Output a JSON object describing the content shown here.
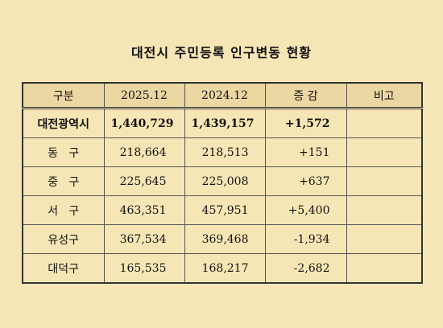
{
  "title": "대전시 주민등록 인구변동 현황",
  "headers": {
    "region": "구분",
    "y2025": "2025.12",
    "y2024": "2024.12",
    "diff": "증 감",
    "note": "비고"
  },
  "rows": [
    {
      "region": "대전광역시",
      "y2025": "1,440,729",
      "y2024": "1,439,157",
      "diff": "+1,572",
      "note": ""
    },
    {
      "region": "동   구",
      "y2025": "218,664",
      "y2024": "218,513",
      "diff": "+151",
      "note": ""
    },
    {
      "region": "중   구",
      "y2025": "225,645",
      "y2024": "225,008",
      "diff": "+637",
      "note": ""
    },
    {
      "region": "서   구",
      "y2025": "463,351",
      "y2024": "457,951",
      "diff": "+5,400",
      "note": ""
    },
    {
      "region": "유성구",
      "y2025": "367,534",
      "y2024": "369,468",
      "diff": "-1,934",
      "note": ""
    },
    {
      "region": "대덕구",
      "y2025": "165,535",
      "y2024": "168,217",
      "diff": "-2,682",
      "note": ""
    }
  ]
}
